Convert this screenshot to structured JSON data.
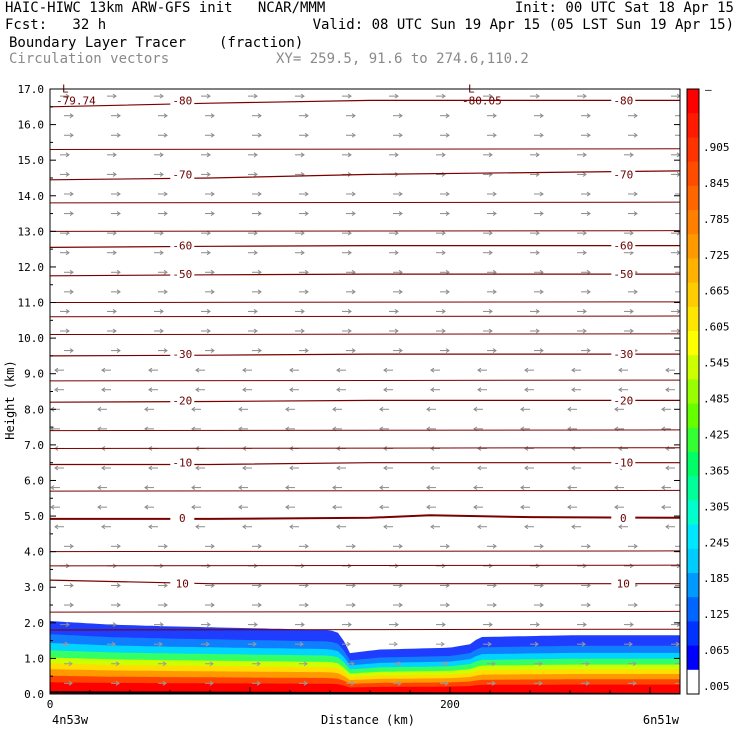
{
  "header": {
    "line1_left": "HAIC-HIWC 13km ARW-GFS init   NCAR/MMM",
    "line1_right": "Init: 00 UTC Sat 18 Apr 15",
    "line2_left": "Fcst:   32 h",
    "line2_right": "Valid: 08 UTC Sun 19 Apr 15 (05 LST Sun 19 Apr 15)",
    "line3_left": "Boundary Layer Tracer",
    "line3_units": "(fraction)",
    "line4_left": "Circulation vectors",
    "line4_xy": "XY= 259.5, 91.6 to 274.6,110.2"
  },
  "chart_data": {
    "type": "heatmap",
    "xlabel": "Distance (km)",
    "ylabel": "Height (km)",
    "xlim": [
      0,
      315
    ],
    "ylim": [
      0,
      17
    ],
    "x_ticks": [
      {
        "value": 0,
        "label": "0"
      },
      {
        "value": 200,
        "label": "200"
      }
    ],
    "x_end_labels": {
      "left": "4n53w",
      "right": "6n51w"
    },
    "y_ticks": [
      0.0,
      1.0,
      2.0,
      3.0,
      4.0,
      5.0,
      6.0,
      7.0,
      8.0,
      9.0,
      10.0,
      11.0,
      12.0,
      13.0,
      14.0,
      15.0,
      16.0,
      17.0
    ],
    "y_tick_labels": [
      "0.0",
      "1.0",
      "2.0",
      "3.0",
      "4.0",
      "5.0",
      "6.0",
      "7.0",
      "8.0",
      "9.0",
      "10.0",
      "11.0",
      "12.0",
      "13.0",
      "14.0",
      "15.0",
      "16.0",
      "17.0"
    ],
    "colorbar": {
      "labels": [
        ".905",
        ".845",
        ".785",
        ".725",
        ".665",
        ".605",
        ".545",
        ".485",
        ".425",
        ".365",
        ".305",
        ".245",
        ".185",
        ".125",
        ".065",
        ".005"
      ],
      "top_label": "–",
      "colors": [
        "#ff0000",
        "#ff1a00",
        "#ff3300",
        "#ff4d00",
        "#ff6600",
        "#ff8000",
        "#ff9900",
        "#ffb300",
        "#ffcc00",
        "#ffe600",
        "#ffff00",
        "#ccff00",
        "#99ff00",
        "#66ff00",
        "#33ff33",
        "#00ff66",
        "#00ff99",
        "#00ffcc",
        "#00e6ff",
        "#00ccff",
        "#0099ff",
        "#0066ff",
        "#0033ff",
        "#0000ff",
        "#ffffff"
      ]
    },
    "tracer_top_km": [
      [
        0,
        2.05
      ],
      [
        30,
        1.95
      ],
      [
        60,
        1.9
      ],
      [
        100,
        1.85
      ],
      [
        140,
        1.8
      ],
      [
        145,
        1.7
      ],
      [
        150,
        1.15
      ],
      [
        165,
        1.25
      ],
      [
        200,
        1.3
      ],
      [
        210,
        1.4
      ],
      [
        215,
        1.6
      ],
      [
        260,
        1.65
      ],
      [
        315,
        1.65
      ]
    ],
    "temperature_contours_c": [
      {
        "level": 10,
        "label": "10",
        "points": [
          [
            0,
            3.2
          ],
          [
            80,
            3.1
          ],
          [
            160,
            3.1
          ],
          [
            240,
            3.1
          ],
          [
            315,
            3.1
          ]
        ]
      },
      {
        "level": 0,
        "label": "0",
        "points": [
          [
            0,
            4.92
          ],
          [
            80,
            4.92
          ],
          [
            160,
            4.95
          ],
          [
            190,
            5.02
          ],
          [
            240,
            4.97
          ],
          [
            315,
            4.95
          ]
        ]
      },
      {
        "level": -10,
        "label": "-10",
        "points": [
          [
            0,
            6.45
          ],
          [
            80,
            6.45
          ],
          [
            160,
            6.5
          ],
          [
            240,
            6.5
          ],
          [
            315,
            6.5
          ]
        ]
      },
      {
        "level": -20,
        "label": "-20",
        "points": [
          [
            0,
            8.2
          ],
          [
            80,
            8.22
          ],
          [
            160,
            8.25
          ],
          [
            240,
            8.25
          ],
          [
            315,
            8.25
          ]
        ]
      },
      {
        "level": -30,
        "label": "-30",
        "points": [
          [
            0,
            9.5
          ],
          [
            80,
            9.52
          ],
          [
            160,
            9.55
          ],
          [
            240,
            9.55
          ],
          [
            315,
            9.55
          ]
        ]
      },
      {
        "level": -50,
        "label": "-50",
        "points": [
          [
            0,
            11.75
          ],
          [
            80,
            11.78
          ],
          [
            160,
            11.8
          ],
          [
            240,
            11.8
          ],
          [
            315,
            11.8
          ]
        ]
      },
      {
        "level": -60,
        "label": "-60",
        "points": [
          [
            0,
            12.55
          ],
          [
            80,
            12.58
          ],
          [
            160,
            12.6
          ],
          [
            240,
            12.6
          ],
          [
            315,
            12.6
          ]
        ]
      },
      {
        "level": -70,
        "label": "-70",
        "points": [
          [
            0,
            14.45
          ],
          [
            80,
            14.5
          ],
          [
            160,
            14.6
          ],
          [
            240,
            14.65
          ],
          [
            315,
            14.7
          ]
        ]
      },
      {
        "level": -80,
        "label": "-80",
        "points": [
          [
            0,
            16.5
          ],
          [
            80,
            16.6
          ],
          [
            160,
            16.68
          ],
          [
            240,
            16.68
          ],
          [
            315,
            16.68
          ]
        ]
      }
    ],
    "other_isolines_km": [
      1.8,
      2.3,
      3.6,
      4.0,
      5.7,
      6.9,
      7.4,
      8.8,
      10.1,
      10.6,
      11.0,
      13.0,
      13.8,
      15.3
    ],
    "lows": [
      {
        "x": 6,
        "y": 16.9,
        "label": "L",
        "value": "-79.74"
      },
      {
        "x": 209,
        "y": 16.9,
        "label": "L",
        "value": "-80.05"
      }
    ],
    "wind_vectors_note": "circulation vectors on regular grid"
  }
}
